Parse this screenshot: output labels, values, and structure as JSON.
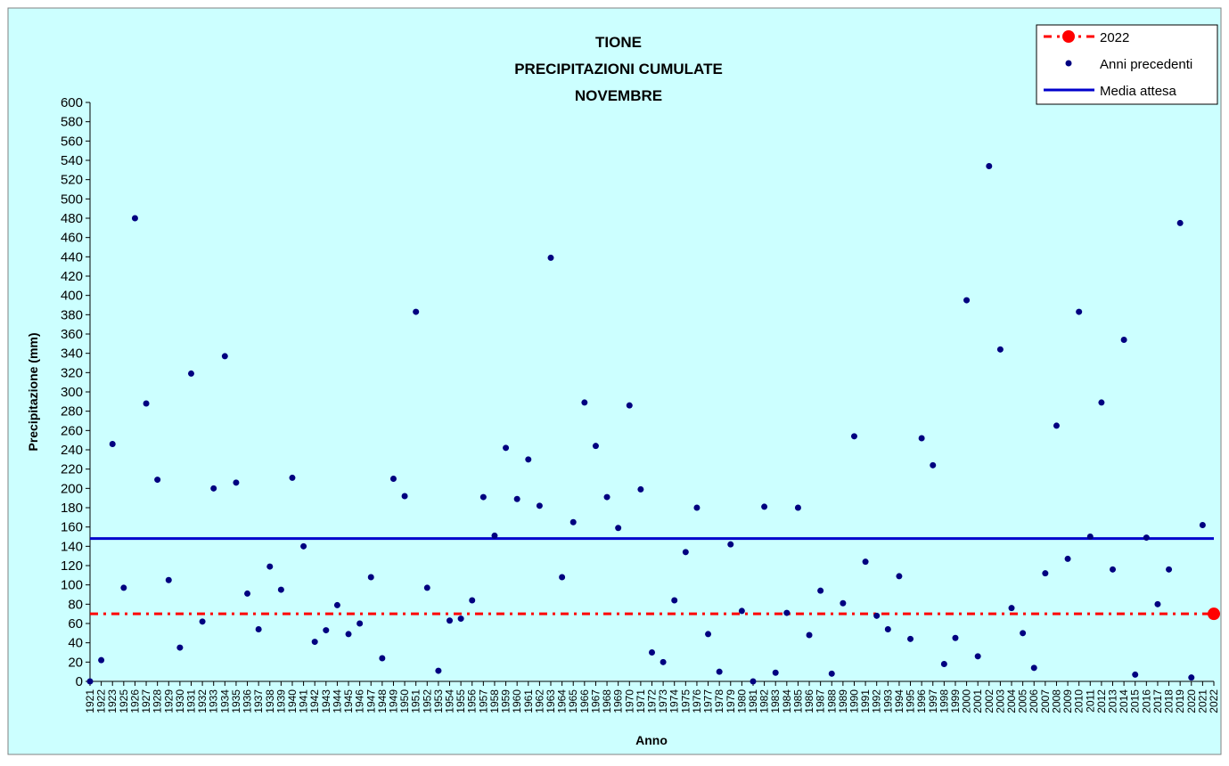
{
  "chart_data": {
    "type": "scatter",
    "title": [
      "TIONE",
      "PRECIPITAZIONI CUMULATE",
      "NOVEMBRE"
    ],
    "xlabel": "Anno",
    "ylabel": "Precipitazione (mm)",
    "ylim": [
      0,
      600
    ],
    "ystep": 20,
    "grid": false,
    "legend_position": "top-right",
    "colors": {
      "background": "#ccffff",
      "points": "#000080",
      "mean_line": "#0000cc",
      "current_year": "#ff0000"
    },
    "categories": [
      "1921",
      "1922",
      "1923",
      "1925",
      "1926",
      "1927",
      "1928",
      "1929",
      "1930",
      "1931",
      "1932",
      "1933",
      "1934",
      "1935",
      "1936",
      "1937",
      "1938",
      "1939",
      "1940",
      "1941",
      "1942",
      "1943",
      "1944",
      "1945",
      "1946",
      "1947",
      "1948",
      "1949",
      "1950",
      "1951",
      "1952",
      "1953",
      "1954",
      "1955",
      "1956",
      "1957",
      "1958",
      "1959",
      "1960",
      "1961",
      "1962",
      "1963",
      "1964",
      "1965",
      "1966",
      "1967",
      "1968",
      "1969",
      "1970",
      "1971",
      "1972",
      "1973",
      "1974",
      "1975",
      "1976",
      "1977",
      "1978",
      "1979",
      "1980",
      "1981",
      "1982",
      "1983",
      "1984",
      "1985",
      "1986",
      "1987",
      "1988",
      "1989",
      "1990",
      "1991",
      "1992",
      "1993",
      "1994",
      "1995",
      "1996",
      "1997",
      "1998",
      "1999",
      "2000",
      "2001",
      "2002",
      "2003",
      "2004",
      "2005",
      "2006",
      "2007",
      "2008",
      "2009",
      "2010",
      "2011",
      "2012",
      "2013",
      "2014",
      "2015",
      "2016",
      "2017",
      "2018",
      "2019",
      "2020",
      "2021",
      "2022"
    ],
    "series": [
      {
        "name": "Anni precedenti",
        "values": [
          0,
          22,
          246,
          97,
          480,
          288,
          209,
          105,
          35,
          319,
          62,
          200,
          337,
          206,
          91,
          54,
          119,
          95,
          211,
          140,
          41,
          53,
          79,
          49,
          60,
          108,
          24,
          210,
          192,
          383,
          97,
          11,
          63,
          65,
          84,
          191,
          151,
          242,
          189,
          230,
          182,
          439,
          108,
          165,
          289,
          244,
          191,
          159,
          286,
          199,
          30,
          20,
          84,
          134,
          180,
          49,
          10,
          142,
          73,
          0,
          181,
          9,
          71,
          180,
          48,
          94,
          8,
          81,
          254,
          124,
          68,
          54,
          109,
          44,
          252,
          224,
          18,
          45,
          395,
          26,
          534,
          344,
          76,
          50,
          14,
          112,
          265,
          127,
          383,
          150,
          289,
          116,
          354,
          7,
          149,
          80,
          116,
          475,
          4,
          162,
          null
        ]
      },
      {
        "name": "2022",
        "values": [
          null,
          null,
          null,
          null,
          null,
          null,
          null,
          null,
          null,
          null,
          null,
          null,
          null,
          null,
          null,
          null,
          null,
          null,
          null,
          null,
          null,
          null,
          null,
          null,
          null,
          null,
          null,
          null,
          null,
          null,
          null,
          null,
          null,
          null,
          null,
          null,
          null,
          null,
          null,
          null,
          null,
          null,
          null,
          null,
          null,
          null,
          null,
          null,
          null,
          null,
          null,
          null,
          null,
          null,
          null,
          null,
          null,
          null,
          null,
          null,
          null,
          null,
          null,
          null,
          null,
          null,
          null,
          null,
          null,
          null,
          null,
          null,
          null,
          null,
          null,
          null,
          null,
          null,
          null,
          null,
          null,
          null,
          null,
          null,
          null,
          null,
          null,
          null,
          null,
          null,
          null,
          null,
          null,
          null,
          null,
          null,
          null,
          null,
          null,
          null,
          70
        ]
      }
    ],
    "mean": {
      "name": "Media attesa",
      "value": 148
    }
  }
}
